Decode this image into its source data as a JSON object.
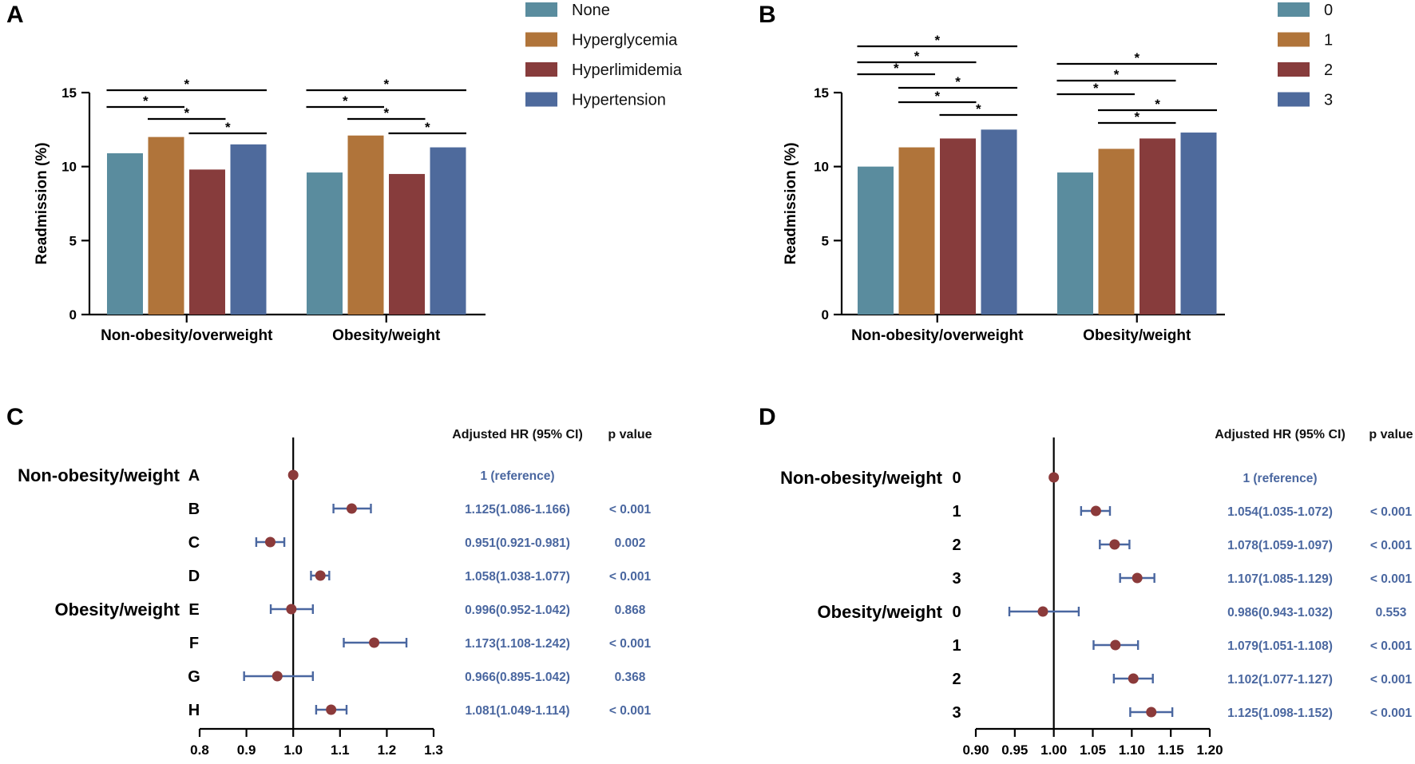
{
  "panels": {
    "A": "A",
    "B": "B",
    "C": "C",
    "D": "D"
  },
  "colors": {
    "bar": [
      "#5a8c9e",
      "#b0743a",
      "#873c3c",
      "#4e6a9c"
    ],
    "ci": "#4a67a0",
    "point": "#8b3a3a",
    "value_text": "#4a67a0"
  },
  "chart_data": [
    {
      "panel": "A",
      "type": "bar",
      "ylabel": "Readmission (%)",
      "ylim": [
        0,
        15
      ],
      "yticks": [
        "0",
        "5",
        "10",
        "15"
      ],
      "categories": [
        "Non-obesity/overweight",
        "Obesity/weight"
      ],
      "series": [
        {
          "name": "None",
          "values": [
            10.9,
            9.6
          ]
        },
        {
          "name": "Hyperglycemia",
          "values": [
            12.0,
            12.1
          ]
        },
        {
          "name": "Hyperlimidemia",
          "values": [
            9.8,
            9.5
          ]
        },
        {
          "name": "Hypertension",
          "values": [
            11.5,
            11.3
          ]
        }
      ],
      "legend_position": "top-right",
      "significance": [
        {
          "group": 0,
          "from": 0,
          "to": 3,
          "label": "*"
        },
        {
          "group": 0,
          "from": 0,
          "to": 1,
          "label": "*"
        },
        {
          "group": 0,
          "from": 1,
          "to": 2,
          "label": "*"
        },
        {
          "group": 0,
          "from": 2,
          "to": 3,
          "label": "*"
        },
        {
          "group": 1,
          "from": 0,
          "to": 3,
          "label": "*"
        },
        {
          "group": 1,
          "from": 0,
          "to": 1,
          "label": "*"
        },
        {
          "group": 1,
          "from": 1,
          "to": 2,
          "label": "*"
        },
        {
          "group": 1,
          "from": 2,
          "to": 3,
          "label": "*"
        }
      ]
    },
    {
      "panel": "B",
      "type": "bar",
      "ylabel": "Readmission (%)",
      "ylim": [
        0,
        15
      ],
      "yticks": [
        "0",
        "5",
        "10",
        "15"
      ],
      "categories": [
        "Non-obesity/overweight",
        "Obesity/weight"
      ],
      "series": [
        {
          "name": "0",
          "values": [
            10.0,
            9.6
          ]
        },
        {
          "name": "1",
          "values": [
            11.3,
            11.2
          ]
        },
        {
          "name": "2",
          "values": [
            11.9,
            11.9
          ]
        },
        {
          "name": "3",
          "values": [
            12.5,
            12.3
          ]
        }
      ],
      "legend_position": "top-right",
      "significance": [
        {
          "group": 0,
          "from": 0,
          "to": 3,
          "label": "*"
        },
        {
          "group": 0,
          "from": 0,
          "to": 2,
          "label": "*"
        },
        {
          "group": 0,
          "from": 0,
          "to": 1,
          "label": "*"
        },
        {
          "group": 0,
          "from": 1,
          "to": 3,
          "label": "*"
        },
        {
          "group": 0,
          "from": 1,
          "to": 2,
          "label": "*"
        },
        {
          "group": 0,
          "from": 2,
          "to": 3,
          "label": "*"
        },
        {
          "group": 1,
          "from": 0,
          "to": 3,
          "label": "*"
        },
        {
          "group": 1,
          "from": 0,
          "to": 2,
          "label": "*"
        },
        {
          "group": 1,
          "from": 0,
          "to": 1,
          "label": "*"
        },
        {
          "group": 1,
          "from": 1,
          "to": 3,
          "label": "*"
        },
        {
          "group": 1,
          "from": 1,
          "to": 2,
          "label": "*"
        }
      ]
    },
    {
      "panel": "C",
      "type": "forest",
      "xlim": [
        0.8,
        1.3
      ],
      "xticks": [
        "0.8",
        "0.9",
        "1.0",
        "1.1",
        "1.2",
        "1.3"
      ],
      "reference": 1.0,
      "header_hr": "Adjusted HR (95% CI)",
      "header_p": "p value",
      "groups": [
        {
          "label": "Non-obesity/weight",
          "start_row": 0
        },
        {
          "label": "Obesity/weight",
          "start_row": 4
        }
      ],
      "rows": [
        {
          "label": "A",
          "hr": 1.0,
          "lo": null,
          "hi": null,
          "text": "1 (reference)",
          "p": ""
        },
        {
          "label": "B",
          "hr": 1.125,
          "lo": 1.086,
          "hi": 1.166,
          "text": "1.125(1.086-1.166)",
          "p": "< 0.001"
        },
        {
          "label": "C",
          "hr": 0.951,
          "lo": 0.921,
          "hi": 0.981,
          "text": "0.951(0.921-0.981)",
          "p": "0.002"
        },
        {
          "label": "D",
          "hr": 1.058,
          "lo": 1.038,
          "hi": 1.077,
          "text": "1.058(1.038-1.077)",
          "p": "< 0.001"
        },
        {
          "label": "E",
          "hr": 0.996,
          "lo": 0.952,
          "hi": 1.042,
          "text": "0.996(0.952-1.042)",
          "p": "0.868"
        },
        {
          "label": "F",
          "hr": 1.173,
          "lo": 1.108,
          "hi": 1.242,
          "text": "1.173(1.108-1.242)",
          "p": "< 0.001"
        },
        {
          "label": "G",
          "hr": 0.966,
          "lo": 0.895,
          "hi": 1.042,
          "text": "0.966(0.895-1.042)",
          "p": "0.368"
        },
        {
          "label": "H",
          "hr": 1.081,
          "lo": 1.049,
          "hi": 1.114,
          "text": "1.081(1.049-1.114)",
          "p": "< 0.001"
        }
      ]
    },
    {
      "panel": "D",
      "type": "forest",
      "xlim": [
        0.9,
        1.2
      ],
      "xticks": [
        "0.90",
        "0.95",
        "1.00",
        "1.05",
        "1.10",
        "1.15",
        "1.20"
      ],
      "reference": 1.0,
      "header_hr": "Adjusted HR (95% CI)",
      "header_p": "p value",
      "groups": [
        {
          "label": "Non-obesity/weight",
          "start_row": 0
        },
        {
          "label": "Obesity/weight",
          "start_row": 4
        }
      ],
      "rows": [
        {
          "label": "0",
          "hr": 1.0,
          "lo": null,
          "hi": null,
          "text": "1 (reference)",
          "p": ""
        },
        {
          "label": "1",
          "hr": 1.054,
          "lo": 1.035,
          "hi": 1.072,
          "text": "1.054(1.035-1.072)",
          "p": "< 0.001"
        },
        {
          "label": "2",
          "hr": 1.078,
          "lo": 1.059,
          "hi": 1.097,
          "text": "1.078(1.059-1.097)",
          "p": "< 0.001"
        },
        {
          "label": "3",
          "hr": 1.107,
          "lo": 1.085,
          "hi": 1.129,
          "text": "1.107(1.085-1.129)",
          "p": "< 0.001"
        },
        {
          "label": "0",
          "hr": 0.986,
          "lo": 0.943,
          "hi": 1.032,
          "text": "0.986(0.943-1.032)",
          "p": "0.553"
        },
        {
          "label": "1",
          "hr": 1.079,
          "lo": 1.051,
          "hi": 1.108,
          "text": "1.079(1.051-1.108)",
          "p": "< 0.001"
        },
        {
          "label": "2",
          "hr": 1.102,
          "lo": 1.077,
          "hi": 1.127,
          "text": "1.102(1.077-1.127)",
          "p": "< 0.001"
        },
        {
          "label": "3",
          "hr": 1.125,
          "lo": 1.098,
          "hi": 1.152,
          "text": "1.125(1.098-1.152)",
          "p": "< 0.001"
        }
      ]
    }
  ]
}
